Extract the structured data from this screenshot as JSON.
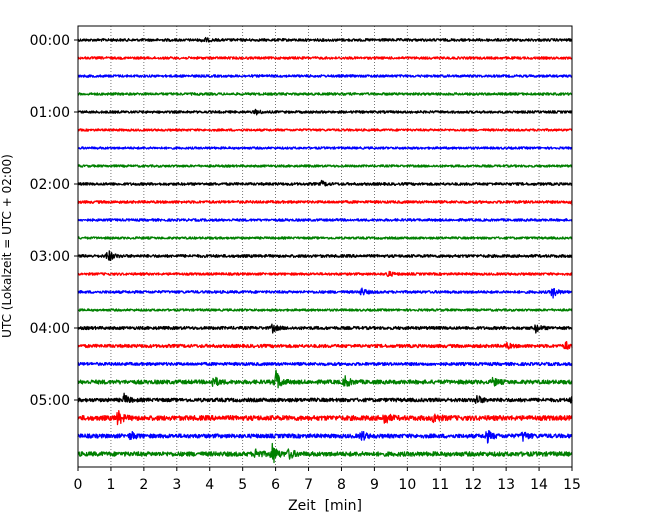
{
  "chart_data": {
    "type": "line",
    "title": "",
    "xlabel": "Zeit  [min]",
    "ylabel": "UTC (Lokalzeit = UTC + 02:00)",
    "xlim": [
      0,
      15
    ],
    "x_ticks": [
      "0",
      "1",
      "2",
      "3",
      "4",
      "5",
      "6",
      "7",
      "8",
      "9",
      "10",
      "11",
      "12",
      "13",
      "14",
      "15"
    ],
    "y_ticks": [
      "00:00",
      "01:00",
      "02:00",
      "03:00",
      "04:00",
      "05:00"
    ],
    "grid": "vertical dotted at each minute",
    "trace_interval_min": 15,
    "trace_count": 24,
    "colors": [
      "#000000",
      "#ff0000",
      "#0000ff",
      "#008000"
    ],
    "noise_levels": [
      1.3,
      1.2,
      1.2,
      1.2,
      1.2,
      1.1,
      1.1,
      1.1,
      1.3,
      1.3,
      1.2,
      1.1,
      1.4,
      1.2,
      1.3,
      1.1,
      1.5,
      1.6,
      1.5,
      2.0,
      1.8,
      2.4,
      2.0,
      2.2
    ],
    "events": [
      {
        "trace": 0,
        "minute": 3.8,
        "amp": 2.5
      },
      {
        "trace": 4,
        "minute": 5.4,
        "amp": 2.5
      },
      {
        "trace": 8,
        "minute": 7.4,
        "amp": 2.5
      },
      {
        "trace": 9,
        "minute": 15.0,
        "amp": 3
      },
      {
        "trace": 12,
        "minute": 0.9,
        "amp": 7
      },
      {
        "trace": 13,
        "minute": 9.4,
        "amp": 3
      },
      {
        "trace": 14,
        "minute": 8.6,
        "amp": 4
      },
      {
        "trace": 14,
        "minute": 14.4,
        "amp": 6
      },
      {
        "trace": 16,
        "minute": 5.9,
        "amp": 4
      },
      {
        "trace": 16,
        "minute": 13.9,
        "amp": 4
      },
      {
        "trace": 17,
        "minute": 13.0,
        "amp": 3
      },
      {
        "trace": 17,
        "minute": 14.8,
        "amp": 4
      },
      {
        "trace": 19,
        "minute": 4.1,
        "amp": 6
      },
      {
        "trace": 19,
        "minute": 6.0,
        "amp": 12
      },
      {
        "trace": 19,
        "minute": 8.1,
        "amp": 6
      },
      {
        "trace": 19,
        "minute": 12.6,
        "amp": 4
      },
      {
        "trace": 20,
        "minute": 1.4,
        "amp": 5
      },
      {
        "trace": 20,
        "minute": 12.1,
        "amp": 5
      },
      {
        "trace": 20,
        "minute": 15.0,
        "amp": 5
      },
      {
        "trace": 21,
        "minute": 1.2,
        "amp": 7
      },
      {
        "trace": 21,
        "minute": 9.3,
        "amp": 6
      },
      {
        "trace": 21,
        "minute": 10.8,
        "amp": 5
      },
      {
        "trace": 22,
        "minute": 1.6,
        "amp": 4
      },
      {
        "trace": 22,
        "minute": 8.6,
        "amp": 5
      },
      {
        "trace": 22,
        "minute": 12.4,
        "amp": 7
      },
      {
        "trace": 22,
        "minute": 13.5,
        "amp": 5
      },
      {
        "trace": 23,
        "minute": 5.9,
        "amp": 10
      },
      {
        "trace": 23,
        "minute": 5.4,
        "amp": 5
      },
      {
        "trace": 23,
        "minute": 6.4,
        "amp": 5
      }
    ]
  }
}
